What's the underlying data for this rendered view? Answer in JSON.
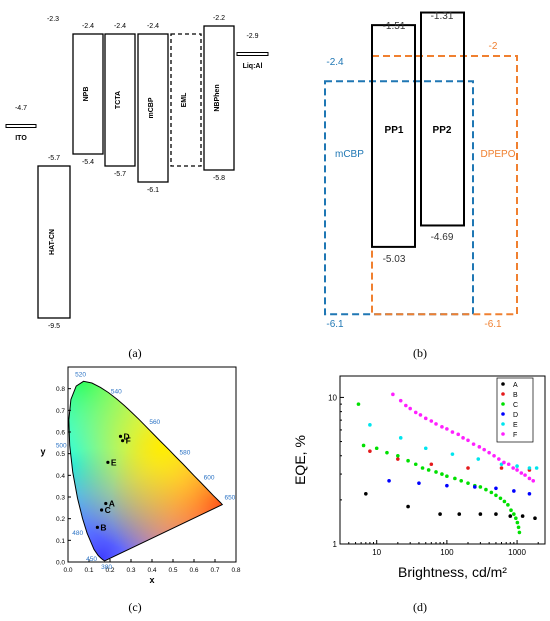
{
  "panels": [
    {
      "caption": "(a)",
      "chart_data": {
        "type": "diagram",
        "title": "",
        "ylim": [
          -10,
          -2
        ],
        "layers": [
          {
            "name": "ITO",
            "top": null,
            "bottom": -4.7,
            "kind": "line",
            "label_top": "-4.7",
            "label_bottom": ""
          },
          {
            "name": "HAT-CN",
            "top": -5.7,
            "bottom": -9.5,
            "kind": "box",
            "label_top": "-5.7",
            "label_bottom": "-9.5"
          },
          {
            "name": "NPB",
            "top": -2.4,
            "bottom": -5.4,
            "kind": "box",
            "label_top": "-2.4",
            "label_bottom": "-5.4"
          },
          {
            "name": "TCTA",
            "top": -2.4,
            "bottom": -5.7,
            "kind": "box",
            "label_top": "-2.4",
            "label_bottom": "-5.7"
          },
          {
            "name": "mCBP",
            "top": -2.4,
            "bottom": -6.1,
            "kind": "box",
            "label_top": "-2.4",
            "label_bottom": "-6.1"
          },
          {
            "name": "EML",
            "top": -2.4,
            "bottom": -5.7,
            "kind": "dashed",
            "label_top": "",
            "label_bottom": ""
          },
          {
            "name": "NBPhen",
            "top": -2.2,
            "bottom": -5.8,
            "kind": "box",
            "label_top": "-2.2",
            "label_bottom": "-5.8"
          },
          {
            "name": "Liq:Al",
            "top": -2.9,
            "bottom": null,
            "kind": "line",
            "label_top": "-2.9",
            "label_bottom": ""
          }
        ],
        "extra_labels": [
          "-2.3"
        ]
      }
    },
    {
      "caption": "(b)",
      "chart_data": {
        "type": "diagram",
        "title": "",
        "layers": [
          {
            "name": "mCBP",
            "top": -2.4,
            "bottom": -6.1,
            "kind": "dashed",
            "color": "#1f77b4",
            "label_top": "-2.4",
            "label_bottom": "-6.1"
          },
          {
            "name": "DPEPO",
            "top": -2,
            "bottom": -6.1,
            "kind": "dashed",
            "color": "#f08030",
            "label_top": "-2",
            "label_bottom": "-6.1"
          },
          {
            "name": "PP1",
            "top": -1.51,
            "bottom": -5.03,
            "kind": "box",
            "color": "#000000",
            "label_top": "-1.51",
            "label_bottom": "-5.03"
          },
          {
            "name": "PP2",
            "top": -1.31,
            "bottom": -4.69,
            "kind": "box",
            "color": "#000000",
            "label_top": "-1.31",
            "label_bottom": "-4.69"
          }
        ]
      }
    },
    {
      "caption": "(c)",
      "chart_data": {
        "type": "scatter",
        "title": "",
        "xlabel": "x",
        "ylabel": "y",
        "xlim": [
          0,
          0.8
        ],
        "ylim": [
          0,
          0.9
        ],
        "xticks": [
          "0.0",
          "0.1",
          "0.2",
          "0.3",
          "0.4",
          "0.5",
          "0.6",
          "0.7",
          "0.8"
        ],
        "yticks": [
          "0.0",
          "0.1",
          "0.2",
          "0.3",
          "0.4",
          "0.5",
          "0.6",
          "0.7",
          "0.8"
        ],
        "locus_labels": [
          {
            "nm": "520",
            "x": 0.074,
            "y": 0.834
          },
          {
            "nm": "540",
            "x": 0.23,
            "y": 0.754
          },
          {
            "nm": "560",
            "x": 0.373,
            "y": 0.624
          },
          {
            "nm": "580",
            "x": 0.512,
            "y": 0.487
          },
          {
            "nm": "600",
            "x": 0.627,
            "y": 0.372
          },
          {
            "nm": "650",
            "x": 0.726,
            "y": 0.274
          },
          {
            "nm": "500",
            "x": 0.008,
            "y": 0.538
          },
          {
            "nm": "480",
            "x": 0.091,
            "y": 0.133
          },
          {
            "nm": "450",
            "x": 0.157,
            "y": 0.018
          },
          {
            "nm": "380",
            "x": 0.174,
            "y": 0.005
          }
        ],
        "points": [
          {
            "name": "A",
            "x": 0.18,
            "y": 0.27
          },
          {
            "name": "B",
            "x": 0.14,
            "y": 0.16
          },
          {
            "name": "C",
            "x": 0.16,
            "y": 0.24
          },
          {
            "name": "D",
            "x": 0.25,
            "y": 0.58
          },
          {
            "name": "E",
            "x": 0.19,
            "y": 0.46
          },
          {
            "name": "F",
            "x": 0.26,
            "y": 0.56
          }
        ]
      }
    },
    {
      "caption": "(d)",
      "chart_data": {
        "type": "scatter",
        "title": "",
        "xlabel": "Brightness, cd/m²",
        "ylabel": "EQE, %",
        "xscale": "log",
        "yscale": "log",
        "xlim": [
          3,
          2500
        ],
        "ylim": [
          1,
          14
        ],
        "xticks": [
          {
            "v": 10,
            "label": "10"
          },
          {
            "v": 100,
            "label": "100"
          },
          {
            "v": 1000,
            "label": "1000"
          }
        ],
        "yticks": [
          {
            "v": 1,
            "label": "1"
          },
          {
            "v": 10,
            "label": "10"
          }
        ],
        "legend_position": "top-right",
        "series": [
          {
            "name": "A",
            "color": "#000000",
            "points": [
              [
                7,
                2.2
              ],
              [
                28,
                1.8
              ],
              [
                80,
                1.6
              ],
              [
                150,
                1.6
              ],
              [
                300,
                1.6
              ],
              [
                500,
                1.6
              ],
              [
                800,
                1.55
              ],
              [
                1200,
                1.55
              ],
              [
                1800,
                1.5
              ]
            ]
          },
          {
            "name": "B",
            "color": "#e41a1c",
            "points": [
              [
                8,
                4.3
              ],
              [
                20,
                3.8
              ],
              [
                60,
                3.5
              ],
              [
                200,
                3.3
              ],
              [
                600,
                3.3
              ],
              [
                1500,
                3.2
              ]
            ]
          },
          {
            "name": "C",
            "color": "#00e000",
            "points": [
              [
                5.5,
                9
              ],
              [
                6.5,
                4.7
              ],
              [
                10,
                4.5
              ],
              [
                14,
                4.2
              ],
              [
                20,
                4.0
              ],
              [
                28,
                3.7
              ],
              [
                36,
                3.5
              ],
              [
                45,
                3.3
              ],
              [
                55,
                3.2
              ],
              [
                70,
                3.1
              ],
              [
                85,
                3.0
              ],
              [
                100,
                2.9
              ],
              [
                130,
                2.8
              ],
              [
                160,
                2.7
              ],
              [
                200,
                2.6
              ],
              [
                250,
                2.5
              ],
              [
                300,
                2.45
              ],
              [
                360,
                2.35
              ],
              [
                430,
                2.25
              ],
              [
                500,
                2.15
              ],
              [
                580,
                2.05
              ],
              [
                660,
                1.95
              ],
              [
                740,
                1.85
              ],
              [
                820,
                1.7
              ],
              [
                900,
                1.6
              ],
              [
                960,
                1.5
              ],
              [
                1010,
                1.4
              ],
              [
                1050,
                1.3
              ],
              [
                1080,
                1.2
              ]
            ]
          },
          {
            "name": "D",
            "color": "#0000ff",
            "points": [
              [
                15,
                2.7
              ],
              [
                40,
                2.6
              ],
              [
                100,
                2.5
              ],
              [
                250,
                2.45
              ],
              [
                500,
                2.4
              ],
              [
                900,
                2.3
              ],
              [
                1500,
                2.2
              ]
            ]
          },
          {
            "name": "E",
            "color": "#00e5ee",
            "points": [
              [
                8,
                6.5
              ],
              [
                22,
                5.3
              ],
              [
                50,
                4.5
              ],
              [
                120,
                4.1
              ],
              [
                280,
                3.8
              ],
              [
                600,
                3.5
              ],
              [
                1000,
                3.4
              ],
              [
                1500,
                3.3
              ],
              [
                1900,
                3.3
              ]
            ]
          },
          {
            "name": "F",
            "color": "#ff20ff",
            "points": [
              [
                17,
                10.5
              ],
              [
                22,
                9.5
              ],
              [
                26,
                8.8
              ],
              [
                30,
                8.4
              ],
              [
                36,
                7.9
              ],
              [
                42,
                7.6
              ],
              [
                50,
                7.2
              ],
              [
                60,
                6.9
              ],
              [
                70,
                6.6
              ],
              [
                85,
                6.3
              ],
              [
                100,
                6.1
              ],
              [
                120,
                5.8
              ],
              [
                145,
                5.6
              ],
              [
                170,
                5.3
              ],
              [
                200,
                5.1
              ],
              [
                240,
                4.8
              ],
              [
                290,
                4.6
              ],
              [
                340,
                4.4
              ],
              [
                400,
                4.2
              ],
              [
                470,
                4.0
              ],
              [
                550,
                3.8
              ],
              [
                650,
                3.6
              ],
              [
                760,
                3.5
              ],
              [
                880,
                3.3
              ],
              [
                1000,
                3.2
              ],
              [
                1150,
                3.05
              ],
              [
                1300,
                2.95
              ],
              [
                1500,
                2.8
              ],
              [
                1700,
                2.7
              ]
            ]
          }
        ]
      }
    }
  ]
}
